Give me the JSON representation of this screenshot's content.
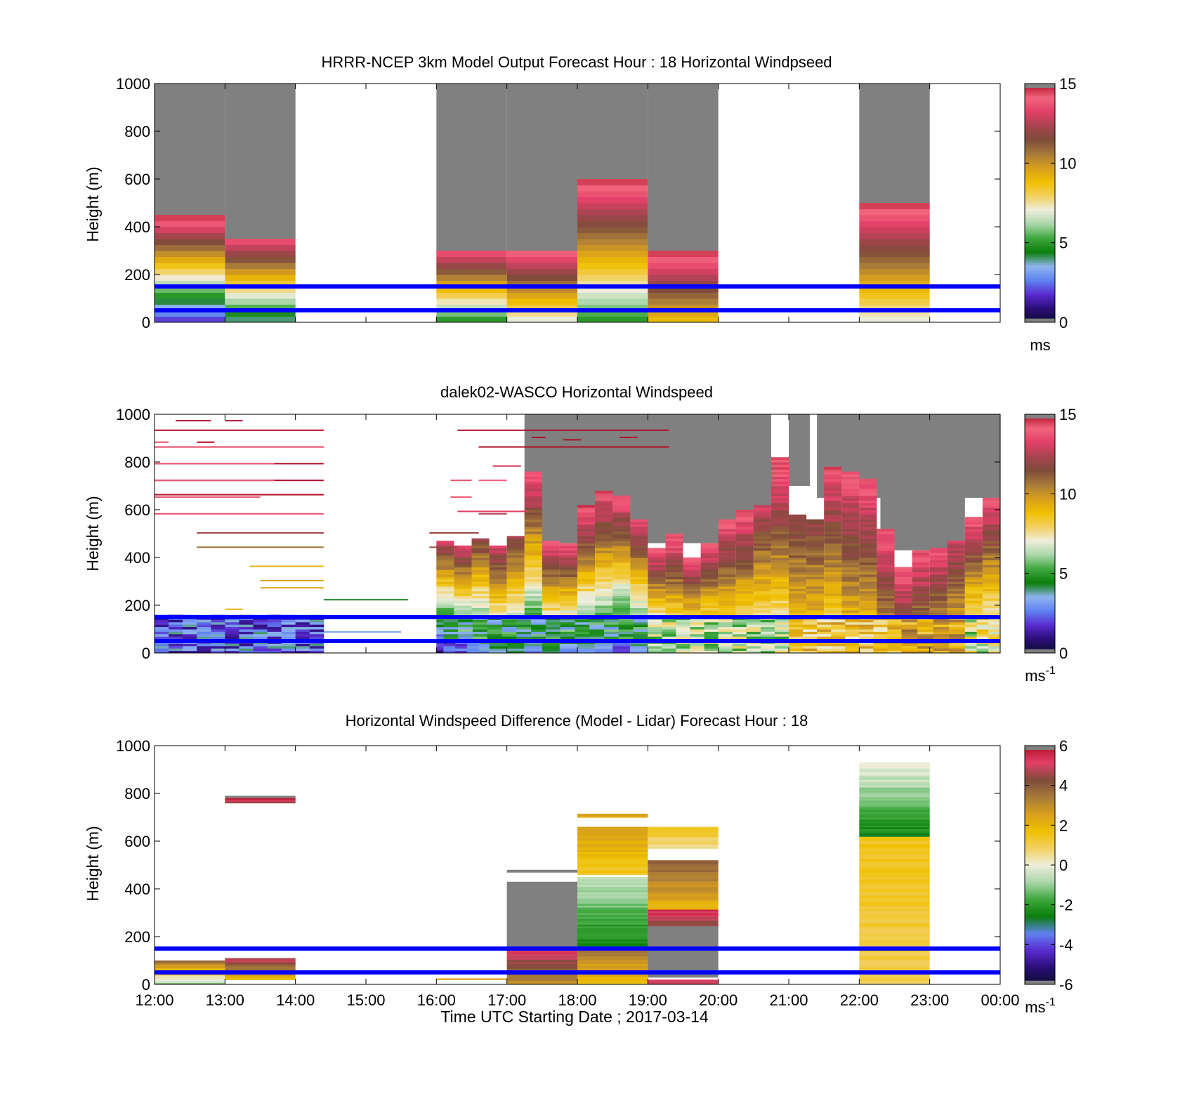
{
  "colors": {
    "overlay_lines": "#0000ff",
    "missing": "#808080",
    "speed_colormap": [
      "#7f7f7f",
      "#0d0d2e",
      "#2a0e78",
      "#5a2bd0",
      "#5f83f0",
      "#8fb4f0",
      "#0a7f0a",
      "#3ea83e",
      "#a9d6a9",
      "#eeeedc",
      "#f2d060",
      "#f0c000",
      "#d79f1d",
      "#a87a3a",
      "#7e4c3a",
      "#a84450",
      "#e24068",
      "#f2647c",
      "#b01028",
      "#7f7f7f"
    ],
    "diff_colormap": [
      "#7f7f7f",
      "#0d0d2e",
      "#2a0e78",
      "#5a2bd0",
      "#5f83f0",
      "#0a7f0a",
      "#3ea83e",
      "#a9d6a9",
      "#eeeedc",
      "#f2d060",
      "#f0c000",
      "#d79f1d",
      "#a87a3a",
      "#7e4c3a",
      "#e24068",
      "#b01028",
      "#7f7f7f"
    ]
  },
  "chart_data": [
    {
      "type": "heatmap",
      "id": "model",
      "title": "HRRR-NCEP 3km Model Output   Forecast Hour : 18 Horizontal Windpseed",
      "ylabel": "Height (m)",
      "xlabel": "",
      "ylim": [
        0,
        1000
      ],
      "yticks": [
        "0",
        "200",
        "400",
        "600",
        "800",
        "1000"
      ],
      "x_ticks": [
        "12:00",
        "13:00",
        "14:00",
        "15:00",
        "16:00",
        "17:00",
        "18:00",
        "19:00",
        "20:00",
        "21:00",
        "22:00",
        "23:00",
        "00:00"
      ],
      "xlim_hours": [
        12,
        24
      ],
      "colorbar": {
        "ticks": [
          "0",
          "5",
          "10",
          "15"
        ],
        "range": [
          0,
          15
        ],
        "unit": "ms",
        "unit_sup": ""
      },
      "overlay_lines_m": [
        50,
        150
      ],
      "columns": [
        {
          "start": 12,
          "end": 13,
          "top": 450,
          "min": 2,
          "max": 14.5
        },
        {
          "start": 13,
          "end": 14,
          "top": 350,
          "min": 4,
          "max": 13.5
        },
        {
          "start": 16,
          "end": 17,
          "top": 300,
          "min": 5,
          "max": 13.5
        },
        {
          "start": 17,
          "end": 18,
          "top": 300,
          "min": 7,
          "max": 14
        },
        {
          "start": 18,
          "end": 19,
          "top": 600,
          "min": 5,
          "max": 14.5
        },
        {
          "start": 19,
          "end": 20,
          "top": 300,
          "min": 9,
          "max": 14.5
        },
        {
          "start": 22,
          "end": 23,
          "top": 500,
          "min": 7,
          "max": 14.5
        }
      ]
    },
    {
      "type": "heatmap",
      "id": "lidar",
      "title": "dalek02-WASCO  Horizontal Windspeed",
      "ylabel": "Height (m)",
      "xlabel": "",
      "ylim": [
        0,
        1000
      ],
      "yticks": [
        "0",
        "200",
        "400",
        "600",
        "800",
        "1000"
      ],
      "x_ticks": [
        "12:00",
        "13:00",
        "14:00",
        "15:00",
        "16:00",
        "17:00",
        "18:00",
        "19:00",
        "20:00",
        "21:00",
        "22:00",
        "23:00",
        "00:00"
      ],
      "xlim_hours": [
        12,
        24
      ],
      "colorbar": {
        "ticks": [
          "0",
          "5",
          "10",
          "15"
        ],
        "range": [
          0,
          15
        ],
        "unit": "ms",
        "unit_sup": "-1"
      },
      "overlay_lines_m": [
        50,
        150
      ],
      "columns": [
        {
          "start": 16.0,
          "end": 16.25,
          "top": 470,
          "min": 1,
          "max": 13
        },
        {
          "start": 16.25,
          "end": 16.5,
          "top": 450,
          "min": 2,
          "max": 13
        },
        {
          "start": 16.5,
          "end": 16.75,
          "top": 480,
          "min": 3,
          "max": 12
        },
        {
          "start": 16.75,
          "end": 17.0,
          "top": 450,
          "min": 4,
          "max": 13
        },
        {
          "start": 17.0,
          "end": 17.25,
          "top": 490,
          "min": 4,
          "max": 12
        },
        {
          "start": 17.25,
          "end": 17.5,
          "top": 760,
          "min": 3,
          "max": 14
        },
        {
          "start": 17.5,
          "end": 17.75,
          "top": 470,
          "min": 4,
          "max": 14
        },
        {
          "start": 17.75,
          "end": 18.0,
          "top": 460,
          "min": 3,
          "max": 14
        },
        {
          "start": 18.0,
          "end": 18.25,
          "top": 620,
          "min": 3,
          "max": 14.5
        },
        {
          "start": 18.25,
          "end": 18.5,
          "top": 680,
          "min": 3,
          "max": 14
        },
        {
          "start": 18.5,
          "end": 18.75,
          "top": 660,
          "min": 2,
          "max": 14
        },
        {
          "start": 18.75,
          "end": 19.0,
          "top": 560,
          "min": 3,
          "max": 13.5
        },
        {
          "start": 19.0,
          "end": 19.25,
          "top": 440,
          "min": 4,
          "max": 14
        },
        {
          "start": 19.25,
          "end": 19.5,
          "top": 500,
          "min": 5,
          "max": 14.5
        },
        {
          "start": 19.5,
          "end": 19.75,
          "top": 400,
          "min": 5,
          "max": 14
        },
        {
          "start": 19.75,
          "end": 20.0,
          "top": 460,
          "min": 5,
          "max": 14
        },
        {
          "start": 20.0,
          "end": 20.25,
          "top": 560,
          "min": 6,
          "max": 14
        },
        {
          "start": 20.25,
          "end": 20.5,
          "top": 600,
          "min": 6,
          "max": 14
        },
        {
          "start": 20.5,
          "end": 20.75,
          "top": 620,
          "min": 6,
          "max": 13
        },
        {
          "start": 20.75,
          "end": 21.0,
          "top": 820,
          "min": 6,
          "max": 14.5
        },
        {
          "start": 21.0,
          "end": 21.25,
          "top": 580,
          "min": 8,
          "max": 12
        },
        {
          "start": 21.25,
          "end": 21.5,
          "top": 560,
          "min": 8,
          "max": 12
        },
        {
          "start": 21.5,
          "end": 21.75,
          "top": 780,
          "min": 7,
          "max": 14
        },
        {
          "start": 21.75,
          "end": 22.0,
          "top": 760,
          "min": 8,
          "max": 14
        },
        {
          "start": 22.0,
          "end": 22.25,
          "top": 730,
          "min": 8,
          "max": 14
        },
        {
          "start": 22.25,
          "end": 22.5,
          "top": 520,
          "min": 9,
          "max": 14
        },
        {
          "start": 22.5,
          "end": 22.75,
          "top": 360,
          "min": 10,
          "max": 14
        },
        {
          "start": 22.75,
          "end": 23.0,
          "top": 430,
          "min": 9,
          "max": 14
        },
        {
          "start": 23.0,
          "end": 23.25,
          "top": 440,
          "min": 8,
          "max": 14
        },
        {
          "start": 23.25,
          "end": 23.5,
          "top": 470,
          "min": 8,
          "max": 13
        },
        {
          "start": 23.5,
          "end": 23.75,
          "top": 570,
          "min": 5,
          "max": 14
        },
        {
          "start": 23.75,
          "end": 24.0,
          "top": 650,
          "min": 5,
          "max": 14
        }
      ],
      "gray_regions": [
        {
          "start": 17.25,
          "end": 20.75,
          "bottom": 460,
          "top": 1000
        },
        {
          "start": 19.5,
          "end": 20.75,
          "bottom": 620,
          "top": 1000
        },
        {
          "start": 21.0,
          "end": 21.3,
          "bottom": 700,
          "top": 1000
        },
        {
          "start": 21.0,
          "end": 21.3,
          "bottom": 340,
          "top": 370
        },
        {
          "start": 21.4,
          "end": 24.0,
          "bottom": 650,
          "top": 1000
        },
        {
          "start": 22.3,
          "end": 23.5,
          "bottom": 430,
          "top": 650
        }
      ],
      "low_layer": [
        {
          "start": 12.0,
          "end": 14.4,
          "bottom": 0,
          "top": 160,
          "min": 1,
          "max": 4
        },
        {
          "start": 16.1,
          "end": 16.6,
          "bottom": 0,
          "top": 50,
          "min": 1,
          "max": 3
        },
        {
          "start": 16.1,
          "end": 19.0,
          "bottom": 50,
          "top": 150,
          "min": 3,
          "max": 6
        },
        {
          "start": 19.0,
          "end": 21.0,
          "bottom": 0,
          "top": 150,
          "min": 5,
          "max": 8
        },
        {
          "start": 21.0,
          "end": 22.6,
          "bottom": 0,
          "top": 150,
          "min": 7,
          "max": 10
        },
        {
          "start": 22.6,
          "end": 23.5,
          "bottom": 0,
          "top": 150,
          "min": 8,
          "max": 11
        },
        {
          "start": 23.5,
          "end": 24.0,
          "bottom": 0,
          "top": 150,
          "min": 5,
          "max": 9
        }
      ],
      "streaks": [
        {
          "start": 12.3,
          "end": 12.8,
          "h": 970,
          "v": 15
        },
        {
          "start": 13.0,
          "end": 13.25,
          "h": 970,
          "v": 15
        },
        {
          "start": 12.0,
          "end": 14.4,
          "h": 930,
          "v": 15
        },
        {
          "start": 12.0,
          "end": 14.4,
          "h": 860,
          "v": 15
        },
        {
          "start": 12.0,
          "end": 14.4,
          "h": 790,
          "v": 15
        },
        {
          "start": 12.0,
          "end": 14.4,
          "h": 720,
          "v": 15
        },
        {
          "start": 12.0,
          "end": 14.4,
          "h": 660,
          "v": 15
        },
        {
          "start": 12.6,
          "end": 12.85,
          "h": 880,
          "v": 15
        },
        {
          "start": 12.0,
          "end": 12.2,
          "h": 880,
          "v": 14.3
        },
        {
          "start": 12.0,
          "end": 14.4,
          "h": 860,
          "v": 13.8
        },
        {
          "start": 12.0,
          "end": 13.7,
          "h": 790,
          "v": 14.2
        },
        {
          "start": 12.0,
          "end": 13.7,
          "h": 720,
          "v": 13.8
        },
        {
          "start": 12.0,
          "end": 13.5,
          "h": 650,
          "v": 13.8
        },
        {
          "start": 12.0,
          "end": 14.4,
          "h": 580,
          "v": 13.6
        },
        {
          "start": 12.6,
          "end": 14.4,
          "h": 500,
          "v": 12.2
        },
        {
          "start": 12.6,
          "end": 14.4,
          "h": 440,
          "v": 10.8
        },
        {
          "start": 13.35,
          "end": 14.4,
          "h": 360,
          "v": 9.2
        },
        {
          "start": 13.0,
          "end": 13.25,
          "h": 180,
          "v": 9.2
        },
        {
          "start": 13.5,
          "end": 14.4,
          "h": 300,
          "v": 9.5
        },
        {
          "start": 13.5,
          "end": 14.4,
          "h": 270,
          "v": 9.5
        },
        {
          "start": 14.4,
          "end": 15.6,
          "h": 220,
          "v": 4.3
        },
        {
          "start": 14.4,
          "end": 15.5,
          "h": 85,
          "v": 3.2
        },
        {
          "start": 16.2,
          "end": 16.5,
          "h": 720,
          "v": 14.3
        },
        {
          "start": 16.2,
          "end": 16.5,
          "h": 650,
          "v": 14.2
        },
        {
          "start": 15.9,
          "end": 16.6,
          "h": 500,
          "v": 12
        },
        {
          "start": 15.9,
          "end": 16.3,
          "h": 440,
          "v": 12
        },
        {
          "start": 16.6,
          "end": 17.0,
          "h": 720,
          "v": 14
        },
        {
          "start": 16.8,
          "end": 17.2,
          "h": 780,
          "v": 14.5
        },
        {
          "start": 16.6,
          "end": 17.0,
          "h": 580,
          "v": 12.5
        },
        {
          "start": 16.3,
          "end": 17.3,
          "h": 590,
          "v": 13.2
        },
        {
          "start": 16.3,
          "end": 19.3,
          "h": 930,
          "v": 15
        },
        {
          "start": 16.6,
          "end": 19.3,
          "h": 860,
          "v": 15
        },
        {
          "start": 17.35,
          "end": 17.55,
          "h": 900,
          "v": 15
        },
        {
          "start": 17.8,
          "end": 18.05,
          "h": 890,
          "v": 15
        },
        {
          "start": 18.6,
          "end": 18.85,
          "h": 900,
          "v": 15
        }
      ]
    },
    {
      "type": "heatmap",
      "id": "diff",
      "title": "Horizontal Windspeed Difference (Model - Lidar) Forecast Hour : 18",
      "ylabel": "Height (m)",
      "xlabel": "Time UTC  Starting Date ; 2017-03-14",
      "ylim": [
        0,
        1000
      ],
      "yticks": [
        "0",
        "200",
        "400",
        "600",
        "800",
        "1000"
      ],
      "x_ticks": [
        "12:00",
        "13:00",
        "14:00",
        "15:00",
        "16:00",
        "17:00",
        "18:00",
        "19:00",
        "20:00",
        "21:00",
        "22:00",
        "23:00",
        "00:00"
      ],
      "xlim_hours": [
        12,
        24
      ],
      "colorbar": {
        "ticks": [
          "-6",
          "-4",
          "-2",
          "0",
          "2",
          "4",
          "6"
        ],
        "range": [
          -6,
          6
        ],
        "unit": "ms",
        "unit_sup": "-1"
      },
      "overlay_lines_m": [
        50,
        150
      ],
      "columns": [
        {
          "start": 12,
          "end": 13,
          "bottom": 0,
          "top": 100,
          "min": -1,
          "max": 3.5
        },
        {
          "start": 13,
          "end": 14,
          "bottom": 20,
          "top": 110,
          "min": 2,
          "max": 5
        },
        {
          "start": 13,
          "end": 14,
          "bottom": 760,
          "top": 790,
          "min": 4.5,
          "max": 6.5
        },
        {
          "start": 16,
          "end": 17,
          "bottom": 20,
          "top": 25,
          "min": 2.5,
          "max": 2.5
        },
        {
          "start": 17,
          "end": 18,
          "bottom": 0,
          "top": 160,
          "min": 3,
          "max": 5.5
        },
        {
          "start": 17,
          "end": 18,
          "bottom": 160,
          "top": 430,
          "min": 6.5,
          "max": 6.5
        },
        {
          "start": 17,
          "end": 18,
          "bottom": 470,
          "top": 480,
          "min": 6.5,
          "max": 6.5
        },
        {
          "start": 18,
          "end": 19,
          "bottom": 0,
          "top": 150,
          "min": 1.5,
          "max": 3.5
        },
        {
          "start": 18,
          "end": 19,
          "bottom": 150,
          "top": 450,
          "min": -2.5,
          "max": -0.5
        },
        {
          "start": 18,
          "end": 19,
          "bottom": 460,
          "top": 660,
          "min": 1.5,
          "max": 2.5
        },
        {
          "start": 18,
          "end": 19,
          "bottom": 700,
          "top": 715,
          "min": 2.5,
          "max": 2.5
        },
        {
          "start": 19,
          "end": 20,
          "bottom": 30,
          "top": 245,
          "min": 6.5,
          "max": 6.5
        },
        {
          "start": 19,
          "end": 20,
          "bottom": 245,
          "top": 315,
          "min": 4.5,
          "max": 5.5
        },
        {
          "start": 19,
          "end": 20,
          "bottom": 315,
          "top": 520,
          "min": 2,
          "max": 4
        },
        {
          "start": 19,
          "end": 20,
          "bottom": 570,
          "top": 660,
          "min": 0.5,
          "max": 1.5
        },
        {
          "start": 19,
          "end": 20,
          "bottom": 0,
          "top": 20,
          "min": 5,
          "max": 5
        },
        {
          "start": 22,
          "end": 23,
          "bottom": 0,
          "top": 620,
          "min": 1,
          "max": 1.5
        },
        {
          "start": 22,
          "end": 23,
          "bottom": 620,
          "top": 930,
          "min": -2.5,
          "max": 0
        }
      ]
    }
  ]
}
